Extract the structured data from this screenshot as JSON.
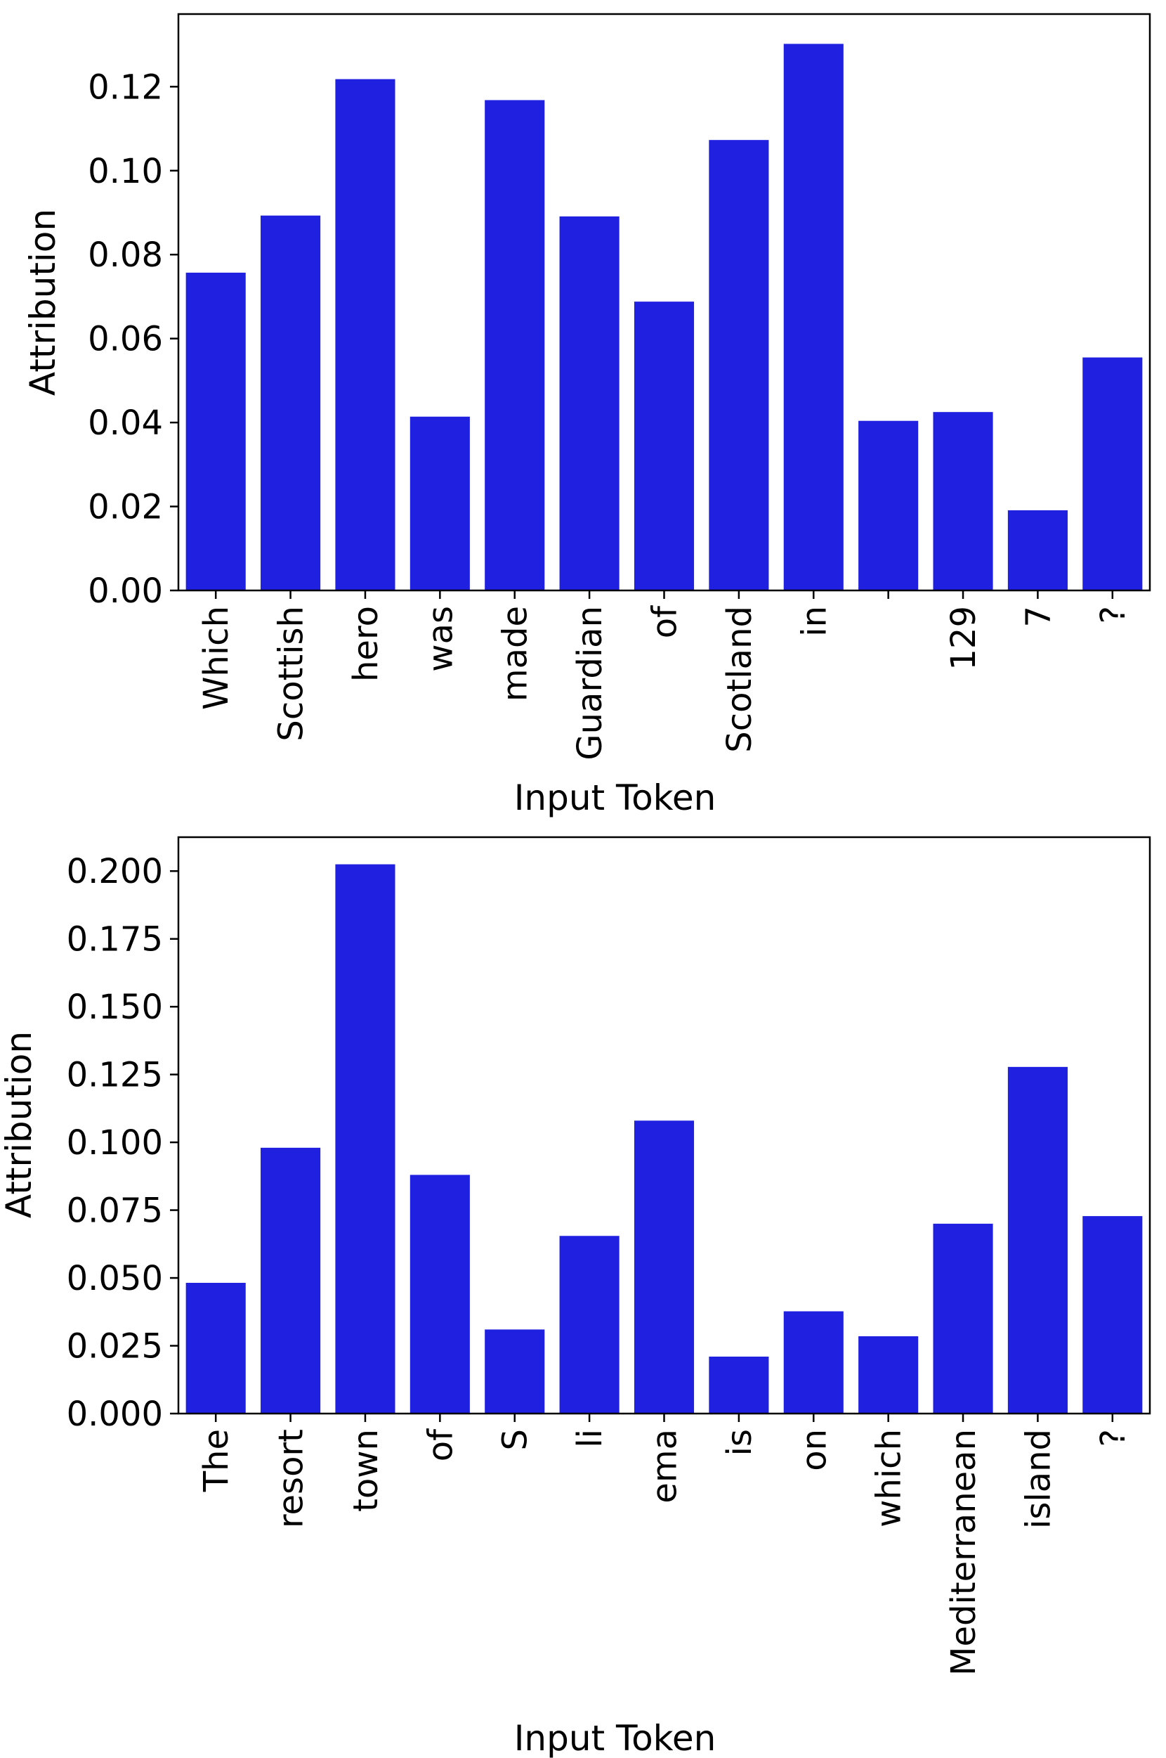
{
  "chart_data": [
    {
      "type": "bar",
      "title": "",
      "xlabel": "Input Token",
      "ylabel": "Attribution",
      "ylim": [
        0,
        0.1373
      ],
      "yticks": [
        "0.00",
        "0.02",
        "0.04",
        "0.06",
        "0.08",
        "0.10",
        "0.12"
      ],
      "ytick_values": [
        0,
        0.02,
        0.04,
        0.06,
        0.08,
        0.1,
        0.12
      ],
      "categories": [
        "Which",
        "Scottish",
        "hero",
        "was",
        "made",
        "Guardian",
        "of",
        "Scotland",
        "in",
        "",
        "129",
        "7",
        "?"
      ],
      "values": [
        0.0757,
        0.0893,
        0.1218,
        0.0414,
        0.1168,
        0.0891,
        0.0688,
        0.1073,
        0.1302,
        0.0404,
        0.0425,
        0.0191,
        0.0555
      ],
      "bar_color": "#2020e0"
    },
    {
      "type": "bar",
      "title": "",
      "xlabel": "Input Token",
      "ylabel": "Attribution",
      "ylim": [
        0,
        0.2125
      ],
      "yticks": [
        "0.000",
        "0.025",
        "0.050",
        "0.075",
        "0.100",
        "0.125",
        "0.150",
        "0.175",
        "0.200"
      ],
      "ytick_values": [
        0,
        0.025,
        0.05,
        0.075,
        0.1,
        0.125,
        0.15,
        0.175,
        0.2
      ],
      "categories": [
        "The",
        "resort",
        "town",
        "of",
        "S",
        "li",
        "ema",
        "is",
        "on",
        "which",
        "Mediterranean",
        "island",
        "?"
      ],
      "values": [
        0.0482,
        0.098,
        0.2025,
        0.088,
        0.031,
        0.0655,
        0.108,
        0.021,
        0.0377,
        0.0285,
        0.07,
        0.1278,
        0.0728
      ],
      "bar_color": "#2020e0"
    }
  ]
}
